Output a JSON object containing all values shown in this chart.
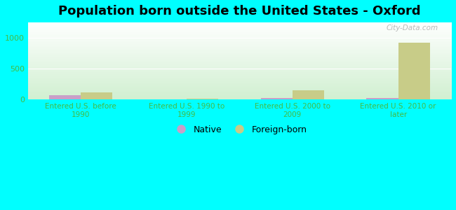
{
  "title": "Population born outside the United States - Oxford",
  "categories": [
    "Entered U.S. before\n1990",
    "Entered U.S. 1990 to\n1999",
    "Entered U.S. 2000 to\n2009",
    "Entered U.S. 2010 or\nlater"
  ],
  "native_values": [
    75,
    5,
    20,
    30
  ],
  "foreign_values": [
    120,
    18,
    145,
    920
  ],
  "native_color": "#c8a0c8",
  "foreign_color": "#c8cc88",
  "background_outer": "#00ffff",
  "title_fontsize": 13,
  "tick_label_color": "#44bb44",
  "ylim": [
    0,
    1250
  ],
  "yticks": [
    0,
    500,
    1000
  ],
  "bar_width": 0.3,
  "legend_native_label": "Native",
  "legend_foreign_label": "Foreign-born",
  "watermark": "City-Data.com"
}
